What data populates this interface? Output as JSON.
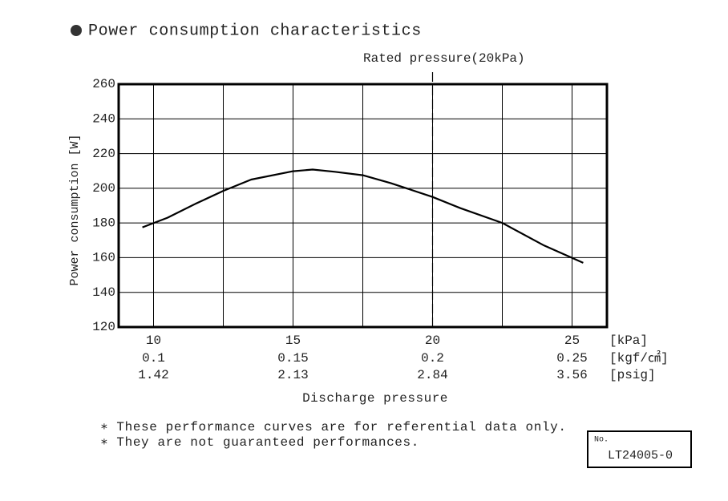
{
  "chart_data": {
    "type": "line",
    "title": "Power consumption characteristics",
    "annotation": "Rated pressure(20kPa)",
    "rated_x": 20,
    "x_label": "Discharge pressure",
    "y_label": "Power consumption [W]",
    "x": [
      9.6,
      10.5,
      11.5,
      12.5,
      13.5,
      15,
      15.7,
      16.5,
      17.5,
      18.5,
      20,
      21,
      22.5,
      24,
      25.4
    ],
    "values": [
      177.5,
      183,
      191,
      198.5,
      205,
      209.8,
      210.8,
      209.5,
      207.5,
      203,
      195,
      188.5,
      180,
      167,
      157
    ],
    "color": "#000000",
    "xlim": [
      8.75,
      26.25
    ],
    "xticks": [
      10,
      15,
      20,
      25
    ],
    "x_grid": [
      12.5,
      17.5,
      22.5
    ],
    "x_unit": "[kPa]",
    "alt_scales": [
      {
        "labels": [
          "0.1",
          "0.15",
          "0.2",
          "0.25"
        ],
        "unit": "[kgf/㎠]"
      },
      {
        "labels": [
          "1.42",
          "2.13",
          "2.84",
          "3.56"
        ],
        "unit": "[psig]"
      }
    ],
    "ylim": [
      120,
      260
    ],
    "yticks": [
      120,
      140,
      160,
      180,
      200,
      220,
      240,
      260
    ],
    "grid": true
  },
  "notes": [
    "∗ These performance curves are for referential data only.",
    "∗ They are not guaranteed performances."
  ],
  "doc": {
    "no_label": "No.",
    "number": "LT24005-0"
  }
}
